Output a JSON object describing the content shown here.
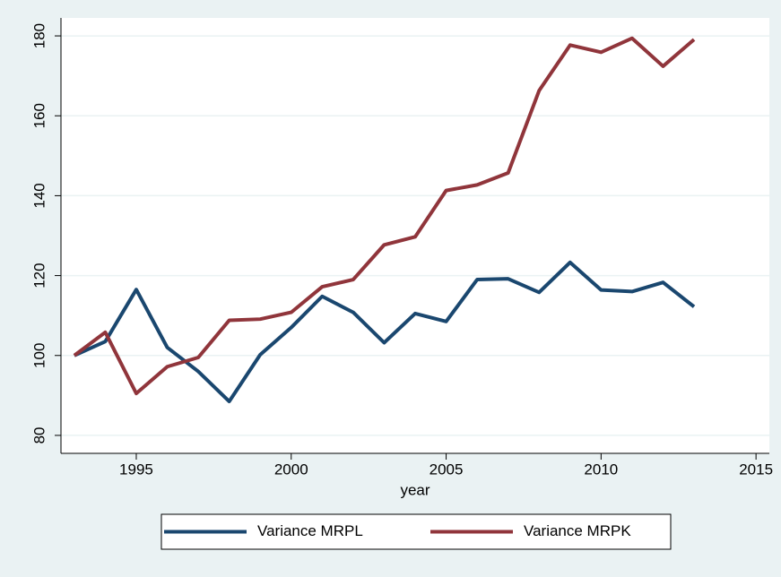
{
  "chart_data": {
    "type": "line",
    "x": [
      1993,
      1994,
      1995,
      1996,
      1997,
      1998,
      1999,
      2000,
      2001,
      2002,
      2003,
      2004,
      2005,
      2006,
      2007,
      2008,
      2009,
      2010,
      2011,
      2012,
      2013
    ],
    "series": [
      {
        "name": "Variance MRPL",
        "color": "#1a476f",
        "values": [
          100,
          103.5,
          116.5,
          102,
          96,
          88.5,
          100.2,
          107,
          114.8,
          110.8,
          103.2,
          110.5,
          108.5,
          119,
          119.2,
          115.8,
          123.3,
          116.4,
          116,
          118.3,
          112.2
        ]
      },
      {
        "name": "Variance MRPK",
        "color": "#90353b",
        "values": [
          100,
          105.8,
          90.5,
          97.2,
          99.5,
          108.8,
          109.1,
          110.8,
          117.2,
          119,
          127.7,
          129.7,
          141.3,
          142.7,
          145.7,
          166.3,
          177.7,
          175.9,
          179.4,
          172.4,
          179.1
        ]
      }
    ],
    "x_label": "year",
    "xlim": [
      1992.57,
      2015.43
    ],
    "xticks": [
      1995,
      2000,
      2005,
      2010,
      2015
    ],
    "ylim": [
      75.5,
      184.5
    ],
    "yticks": [
      80,
      100,
      120,
      140,
      160,
      180
    ],
    "grid": true,
    "legend": "bottom"
  }
}
